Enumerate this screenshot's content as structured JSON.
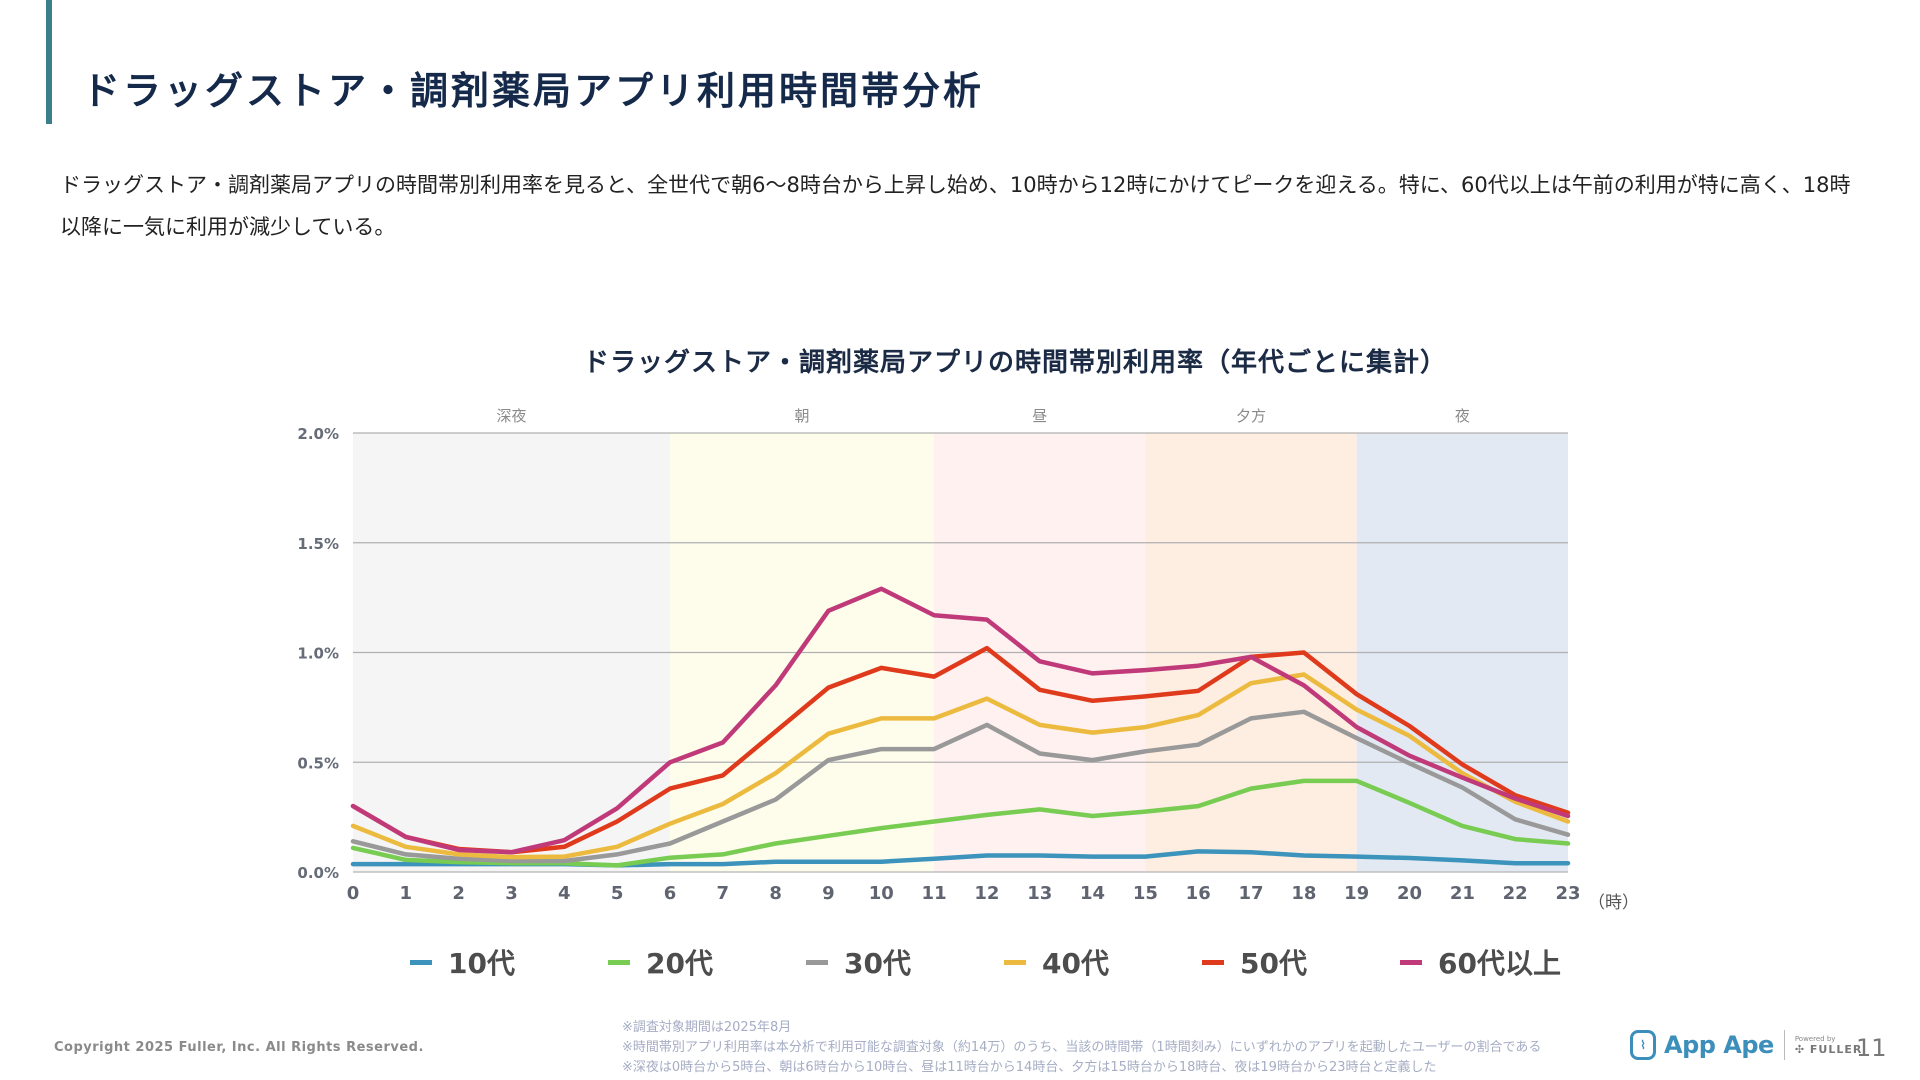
{
  "header": {
    "title": "ドラッグストア・調剤薬局アプリ利用時間帯分析"
  },
  "summary": {
    "text": "ドラッグストア・調剤薬局アプリの時間帯別利用率を見ると、全世代で朝6〜8時台から上昇し始め、10時から12時にかけてピークを迎える。特に、60代以上は午前の利用が特に高く、18時以降に一気に利用が減少している。"
  },
  "chart_data": {
    "type": "line",
    "title": "ドラッグストア・調剤薬局アプリの時間帯別利用率（年代ごとに集計）",
    "xlabel": "（時）",
    "ylabel": "",
    "x": [
      0,
      1,
      2,
      3,
      4,
      5,
      6,
      7,
      8,
      9,
      10,
      11,
      12,
      13,
      14,
      15,
      16,
      17,
      18,
      19,
      20,
      21,
      22,
      23
    ],
    "xlim": [
      0,
      23
    ],
    "ylim": [
      0,
      2.0
    ],
    "y_ticks": [
      0.0,
      0.5,
      1.0,
      1.5,
      2.0
    ],
    "y_tick_labels": [
      "0.0%",
      "0.5%",
      "1.0%",
      "1.5%",
      "2.0%"
    ],
    "grid": true,
    "legend_position": "bottom",
    "bands": [
      {
        "label": "深夜",
        "from": 0,
        "to": 6,
        "color": "#f5f5f5"
      },
      {
        "label": "朝",
        "from": 6,
        "to": 11,
        "color": "#fefdec"
      },
      {
        "label": "昼",
        "from": 11,
        "to": 15,
        "color": "#fef1f0"
      },
      {
        "label": "夕方",
        "from": 15,
        "to": 19,
        "color": "#feeee2"
      },
      {
        "label": "夜",
        "from": 19,
        "to": 23,
        "color": "#e3e9f2"
      }
    ],
    "series": [
      {
        "name": "10代",
        "color": "#3c93bb",
        "values": [
          0.036,
          0.036,
          0.036,
          0.036,
          0.036,
          0.03,
          0.036,
          0.036,
          0.047,
          0.047,
          0.047,
          0.06,
          0.075,
          0.075,
          0.07,
          0.07,
          0.094,
          0.09,
          0.075,
          0.07,
          0.064,
          0.053,
          0.04,
          0.04
        ]
      },
      {
        "name": "20代",
        "color": "#78cc52",
        "values": [
          0.11,
          0.055,
          0.045,
          0.04,
          0.04,
          0.03,
          0.065,
          0.08,
          0.13,
          0.165,
          0.2,
          0.23,
          0.26,
          0.285,
          0.255,
          0.275,
          0.3,
          0.38,
          0.415,
          0.415,
          0.315,
          0.21,
          0.15,
          0.13
        ]
      },
      {
        "name": "30代",
        "color": "#999999",
        "values": [
          0.14,
          0.08,
          0.06,
          0.05,
          0.05,
          0.08,
          0.13,
          0.23,
          0.33,
          0.51,
          0.56,
          0.56,
          0.67,
          0.54,
          0.51,
          0.55,
          0.58,
          0.7,
          0.73,
          0.61,
          0.495,
          0.385,
          0.24,
          0.17
        ]
      },
      {
        "name": "40代",
        "color": "#ecba3e",
        "values": [
          0.21,
          0.115,
          0.08,
          0.068,
          0.07,
          0.115,
          0.22,
          0.31,
          0.45,
          0.63,
          0.7,
          0.7,
          0.79,
          0.67,
          0.635,
          0.66,
          0.715,
          0.86,
          0.9,
          0.74,
          0.62,
          0.45,
          0.32,
          0.23
        ]
      },
      {
        "name": "50代",
        "color": "#df3a1c",
        "values": [
          0.3,
          0.16,
          0.105,
          0.09,
          0.115,
          0.23,
          0.38,
          0.44,
          0.64,
          0.84,
          0.93,
          0.89,
          1.02,
          0.83,
          0.78,
          0.8,
          0.825,
          0.98,
          1.0,
          0.81,
          0.665,
          0.49,
          0.35,
          0.27
        ]
      },
      {
        "name": "60代以上",
        "color": "#c03a7a",
        "values": [
          0.3,
          0.16,
          0.1,
          0.09,
          0.145,
          0.29,
          0.5,
          0.59,
          0.85,
          1.19,
          1.29,
          1.17,
          1.15,
          0.96,
          0.905,
          0.92,
          0.94,
          0.98,
          0.85,
          0.66,
          0.53,
          0.43,
          0.335,
          0.255
        ]
      }
    ]
  },
  "footer": {
    "copyright": "Copyright 2025 Fuller, Inc. All Rights Reserved.",
    "notes": [
      "※調査対象期間は2025年8月",
      "※時間帯別アプリ利用率は本分析で利用可能な調査対象（約14万）のうち、当該の時間帯（1時間刻み）にいずれかのアプリを起動したユーザーの割合である",
      "※深夜は0時台から5時台、朝は6時台から10時台、昼は11時台から14時台、夕方は15時台から18時台、夜は19時台から23時台と定義した"
    ],
    "logo_text": "App Ape",
    "powered_by": "Powered by",
    "fuller": "FULLER",
    "page_number": "11"
  }
}
